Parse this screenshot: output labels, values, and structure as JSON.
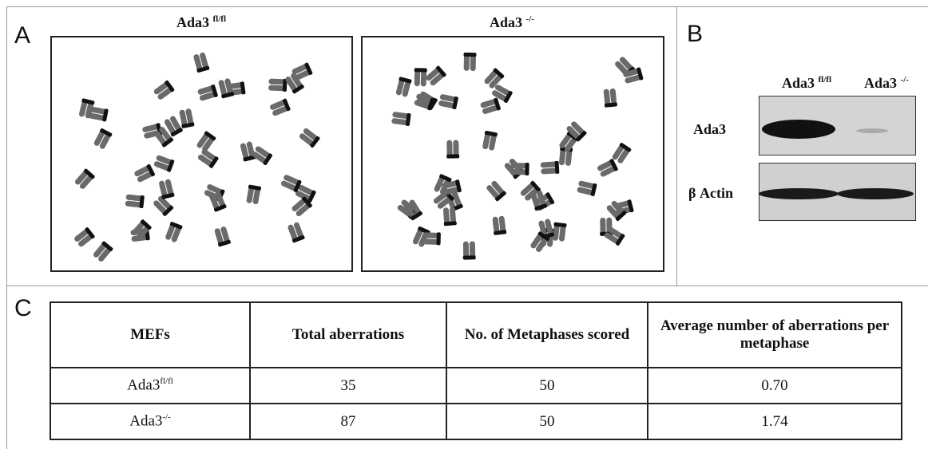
{
  "panel_a": {
    "label": "A",
    "spreads": [
      {
        "title": "Ada3",
        "title_sup": "fl/fl"
      },
      {
        "title": "Ada3",
        "title_sup": "-/-"
      }
    ]
  },
  "panel_b": {
    "label": "B",
    "lanes": [
      {
        "name": "Ada3",
        "sup": "fl/fl"
      },
      {
        "name": "Ada3",
        "sup": "-/-"
      }
    ],
    "rows": [
      "Ada3",
      "β Actin"
    ]
  },
  "panel_c": {
    "label": "C",
    "table": {
      "header": [
        "MEFs",
        "Total aberrations",
        "No. of Metaphases scored",
        "Average number of aberrations per metaphase"
      ],
      "rows": [
        [
          {
            "text": "Ada3",
            "sup": "fl/fl"
          },
          "35",
          "50",
          "0.70"
        ],
        [
          {
            "text": "Ada3",
            "sup": "-/-"
          },
          "87",
          "50",
          "1.74"
        ]
      ]
    }
  }
}
